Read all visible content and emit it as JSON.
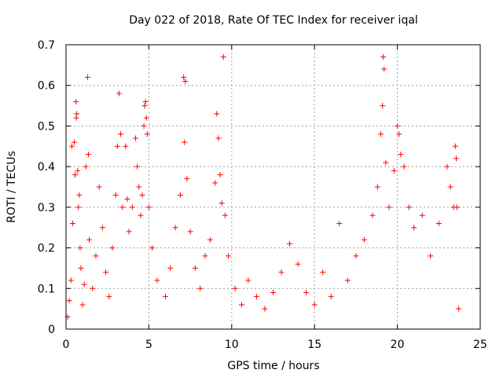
{
  "chart_data": {
    "type": "scatter",
    "title": "Day 022 of 2018, Rate Of TEC Index for receiver iqal",
    "xlabel": "GPS time / hours",
    "ylabel": "ROTI / TECUs",
    "xlim": [
      0,
      25
    ],
    "ylim": [
      0,
      0.7
    ],
    "xticks": [
      0,
      5,
      10,
      15,
      20,
      25
    ],
    "yticks": [
      0,
      0.1,
      0.2,
      0.3,
      0.4,
      0.5,
      0.6,
      0.7
    ],
    "xtick_labels": [
      "0",
      "5",
      "10",
      "15",
      "20",
      "25"
    ],
    "ytick_labels": [
      "0",
      "0.1",
      "0.2",
      "0.3",
      "0.4",
      "0.5",
      "0.6",
      "0.7"
    ],
    "grid": true,
    "marker": "+",
    "series_color": "#ff0000",
    "series": [
      {
        "name": "ROTI",
        "points": [
          [
            0.1,
            0.03
          ],
          [
            0.2,
            0.07
          ],
          [
            0.3,
            0.12
          ],
          [
            0.35,
            0.45
          ],
          [
            0.4,
            0.26
          ],
          [
            0.5,
            0.46
          ],
          [
            0.55,
            0.38
          ],
          [
            0.6,
            0.56
          ],
          [
            0.62,
            0.52
          ],
          [
            0.65,
            0.53
          ],
          [
            0.7,
            0.39
          ],
          [
            0.75,
            0.3
          ],
          [
            0.8,
            0.33
          ],
          [
            0.85,
            0.2
          ],
          [
            0.9,
            0.15
          ],
          [
            1.0,
            0.06
          ],
          [
            1.1,
            0.11
          ],
          [
            1.2,
            0.4
          ],
          [
            1.3,
            0.62
          ],
          [
            1.35,
            0.43
          ],
          [
            1.4,
            0.22
          ],
          [
            1.6,
            0.1
          ],
          [
            1.8,
            0.18
          ],
          [
            2.0,
            0.35
          ],
          [
            2.2,
            0.25
          ],
          [
            2.4,
            0.14
          ],
          [
            2.6,
            0.08
          ],
          [
            2.8,
            0.2
          ],
          [
            3.0,
            0.33
          ],
          [
            3.1,
            0.45
          ],
          [
            3.2,
            0.58
          ],
          [
            3.3,
            0.48
          ],
          [
            3.4,
            0.3
          ],
          [
            3.6,
            0.45
          ],
          [
            3.7,
            0.32
          ],
          [
            3.8,
            0.24
          ],
          [
            4.0,
            0.3
          ],
          [
            4.2,
            0.47
          ],
          [
            4.3,
            0.4
          ],
          [
            4.4,
            0.35
          ],
          [
            4.5,
            0.28
          ],
          [
            4.6,
            0.33
          ],
          [
            4.7,
            0.5
          ],
          [
            4.75,
            0.55
          ],
          [
            4.8,
            0.56
          ],
          [
            4.85,
            0.52
          ],
          [
            4.9,
            0.48
          ],
          [
            5.0,
            0.3
          ],
          [
            5.2,
            0.2
          ],
          [
            5.5,
            0.12
          ],
          [
            6.0,
            0.08
          ],
          [
            6.3,
            0.15
          ],
          [
            6.6,
            0.25
          ],
          [
            6.9,
            0.33
          ],
          [
            7.1,
            0.62
          ],
          [
            7.2,
            0.61
          ],
          [
            7.15,
            0.46
          ],
          [
            7.3,
            0.37
          ],
          [
            7.5,
            0.24
          ],
          [
            7.8,
            0.15
          ],
          [
            8.1,
            0.1
          ],
          [
            8.4,
            0.18
          ],
          [
            8.7,
            0.22
          ],
          [
            9.0,
            0.36
          ],
          [
            9.1,
            0.53
          ],
          [
            9.2,
            0.47
          ],
          [
            9.3,
            0.38
          ],
          [
            9.4,
            0.31
          ],
          [
            9.5,
            0.67
          ],
          [
            9.6,
            0.28
          ],
          [
            9.8,
            0.18
          ],
          [
            10.2,
            0.1
          ],
          [
            10.6,
            0.06
          ],
          [
            11.0,
            0.12
          ],
          [
            11.5,
            0.08
          ],
          [
            12.0,
            0.05
          ],
          [
            12.5,
            0.09
          ],
          [
            13.0,
            0.14
          ],
          [
            13.5,
            0.21
          ],
          [
            14.0,
            0.16
          ],
          [
            14.5,
            0.09
          ],
          [
            15.0,
            0.06
          ],
          [
            15.5,
            0.14
          ],
          [
            16.0,
            0.08
          ],
          [
            16.5,
            0.26
          ],
          [
            17.0,
            0.12
          ],
          [
            17.5,
            0.18
          ],
          [
            18.0,
            0.22
          ],
          [
            18.5,
            0.28
          ],
          [
            18.8,
            0.35
          ],
          [
            19.0,
            0.48
          ],
          [
            19.1,
            0.55
          ],
          [
            19.15,
            0.67
          ],
          [
            19.2,
            0.64
          ],
          [
            19.3,
            0.41
          ],
          [
            19.5,
            0.3
          ],
          [
            19.8,
            0.39
          ],
          [
            20.0,
            0.5
          ],
          [
            20.1,
            0.48
          ],
          [
            20.2,
            0.43
          ],
          [
            20.4,
            0.4
          ],
          [
            20.7,
            0.3
          ],
          [
            21.0,
            0.25
          ],
          [
            21.5,
            0.28
          ],
          [
            22.0,
            0.18
          ],
          [
            22.5,
            0.26
          ],
          [
            23.0,
            0.4
          ],
          [
            23.2,
            0.35
          ],
          [
            23.4,
            0.3
          ],
          [
            23.5,
            0.45
          ],
          [
            23.55,
            0.42
          ],
          [
            23.6,
            0.3
          ],
          [
            23.7,
            0.05
          ]
        ]
      }
    ]
  }
}
